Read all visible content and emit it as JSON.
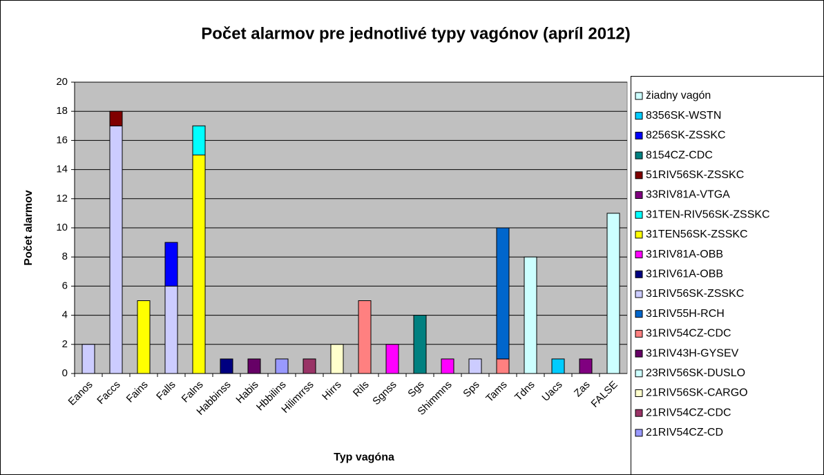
{
  "chart_data": {
    "type": "stacked_bar",
    "title": "Počet alarmov pre jednotlivé typy vagónov (apríl 2012)",
    "x_label": "Typ vagóna",
    "y_label": "Počet alarmov",
    "categories": [
      "Eanos",
      "Faccs",
      "Fains",
      "Falls",
      "Falns",
      "Habbinss",
      "Habis",
      "Hbbilins",
      "Hilimrrss",
      "Hirrs",
      "Rils",
      "Sgnss",
      "Sgs",
      "Shimmns",
      "Sps",
      "Tams",
      "Tdns",
      "Uacs",
      "Zas",
      "FALSE"
    ],
    "ylim": [
      0,
      20
    ],
    "yticks": [
      0,
      2,
      4,
      6,
      8,
      10,
      12,
      14,
      16,
      18,
      20
    ],
    "grid": true,
    "legend": "right",
    "series": [
      {
        "name": "21RIV54CZ-CD",
        "color": "#9999FF",
        "values": [
          null,
          null,
          null,
          null,
          null,
          null,
          null,
          1,
          null,
          null,
          null,
          null,
          null,
          null,
          null,
          null,
          null,
          null,
          null,
          null
        ]
      },
      {
        "name": "21RIV54CZ-CDC",
        "color": "#993366",
        "values": [
          null,
          null,
          null,
          null,
          null,
          null,
          null,
          null,
          1,
          null,
          null,
          null,
          null,
          null,
          null,
          null,
          null,
          null,
          null,
          null
        ]
      },
      {
        "name": "21RIV56SK-CARGO",
        "color": "#FFFFCC",
        "values": [
          null,
          null,
          null,
          null,
          null,
          null,
          null,
          null,
          null,
          2,
          null,
          null,
          null,
          null,
          null,
          null,
          null,
          null,
          null,
          null
        ]
      },
      {
        "name": "23RIV56SK-DUSLO",
        "color": "#CCFFFF",
        "values": [
          null,
          null,
          null,
          null,
          null,
          null,
          null,
          null,
          null,
          null,
          null,
          null,
          null,
          null,
          null,
          null,
          8,
          null,
          null,
          null
        ]
      },
      {
        "name": "31RIV43H-GYSEV",
        "color": "#660066",
        "values": [
          null,
          null,
          null,
          null,
          null,
          null,
          1,
          null,
          null,
          null,
          null,
          null,
          null,
          null,
          null,
          null,
          null,
          null,
          null,
          null
        ]
      },
      {
        "name": "31RIV54CZ-CDC",
        "color": "#FF8080",
        "values": [
          null,
          null,
          null,
          null,
          null,
          null,
          null,
          null,
          null,
          null,
          5,
          null,
          null,
          null,
          null,
          1,
          null,
          null,
          null,
          null
        ]
      },
      {
        "name": "31RIV55H-RCH",
        "color": "#0066CC",
        "values": [
          null,
          null,
          null,
          null,
          null,
          null,
          null,
          null,
          null,
          null,
          null,
          null,
          null,
          null,
          null,
          9,
          null,
          null,
          null,
          null
        ]
      },
      {
        "name": "31RIV56SK-ZSSKC",
        "color": "#CCCCFF",
        "values": [
          2,
          17,
          null,
          6,
          null,
          null,
          null,
          null,
          null,
          null,
          null,
          null,
          null,
          null,
          1,
          null,
          null,
          null,
          null,
          null
        ]
      },
      {
        "name": "31RIV61A-OBB",
        "color": "#000080",
        "values": [
          null,
          null,
          null,
          null,
          null,
          1,
          null,
          null,
          null,
          null,
          null,
          null,
          null,
          null,
          null,
          null,
          null,
          null,
          null,
          null
        ]
      },
      {
        "name": "31RIV81A-OBB",
        "color": "#FF00FF",
        "values": [
          null,
          null,
          null,
          null,
          null,
          null,
          null,
          null,
          null,
          null,
          null,
          2,
          null,
          1,
          null,
          null,
          null,
          null,
          null,
          null
        ]
      },
      {
        "name": "31TEN56SK-ZSSKC",
        "color": "#FFFF00",
        "values": [
          null,
          null,
          5,
          null,
          15,
          null,
          null,
          null,
          null,
          null,
          null,
          null,
          null,
          null,
          null,
          null,
          null,
          null,
          null,
          null
        ]
      },
      {
        "name": "31TEN-RIV56SK-ZSSKC",
        "color": "#00FFFF",
        "values": [
          null,
          null,
          null,
          null,
          2,
          null,
          null,
          null,
          null,
          null,
          null,
          null,
          null,
          null,
          null,
          null,
          null,
          null,
          null,
          null
        ]
      },
      {
        "name": "33RIV81A-VTGA",
        "color": "#800080",
        "values": [
          null,
          null,
          null,
          null,
          null,
          null,
          null,
          null,
          null,
          null,
          null,
          null,
          null,
          null,
          null,
          null,
          null,
          null,
          1,
          null
        ]
      },
      {
        "name": "51RIV56SK-ZSSKC",
        "color": "#800000",
        "values": [
          null,
          1,
          null,
          null,
          null,
          null,
          null,
          null,
          null,
          null,
          null,
          null,
          null,
          null,
          null,
          null,
          null,
          null,
          null,
          null
        ]
      },
      {
        "name": "8154CZ-CDC",
        "color": "#008080",
        "values": [
          null,
          null,
          null,
          null,
          null,
          null,
          null,
          null,
          null,
          null,
          null,
          null,
          4,
          null,
          null,
          null,
          null,
          null,
          null,
          null
        ]
      },
      {
        "name": "8256SK-ZSSKC",
        "color": "#0000FF",
        "values": [
          null,
          null,
          null,
          3,
          null,
          null,
          null,
          null,
          null,
          null,
          null,
          null,
          null,
          null,
          null,
          null,
          null,
          null,
          null,
          null
        ]
      },
      {
        "name": "8356SK-WSTN",
        "color": "#00CCFF",
        "values": [
          null,
          null,
          null,
          null,
          null,
          null,
          null,
          null,
          null,
          null,
          null,
          null,
          null,
          null,
          null,
          null,
          null,
          1,
          null,
          null
        ]
      },
      {
        "name": "žiadny vagón",
        "color": "#CCFFFF",
        "values": [
          null,
          null,
          null,
          null,
          null,
          null,
          null,
          null,
          null,
          null,
          null,
          null,
          null,
          null,
          null,
          null,
          null,
          null,
          null,
          11
        ]
      }
    ]
  }
}
